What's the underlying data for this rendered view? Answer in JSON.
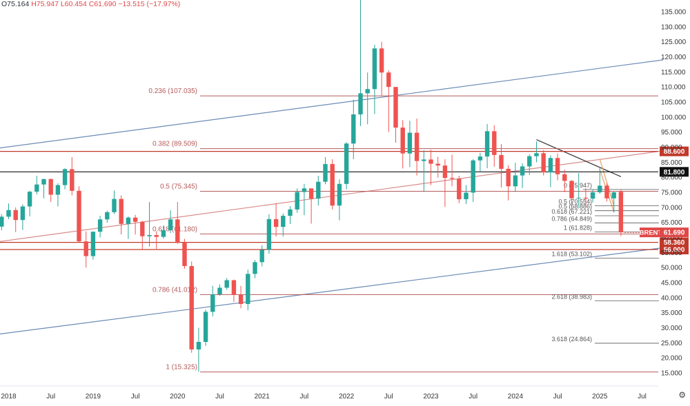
{
  "ohlc": {
    "open": "O75.164",
    "high": "H75.947",
    "low": "L60.454",
    "close": "C61.690",
    "change": "−13.515 (−17.97%)"
  },
  "settings_icon": "gear-icon",
  "chart_data": {
    "type": "candlestick",
    "symbol": "BRENT",
    "interval": "monthly",
    "ylim": [
      14,
      136
    ],
    "y_ticks": [
      15,
      20,
      25,
      30,
      35,
      40,
      45,
      50,
      55,
      60,
      65,
      70,
      75,
      80,
      85,
      90,
      95,
      100,
      105,
      110,
      115,
      120,
      125,
      130,
      135
    ],
    "y_tick_labels": [
      "15.000",
      "20.000",
      "25.000",
      "30.000",
      "35.000",
      "40.000",
      "45.000",
      "50.000",
      "55.000",
      "60.000",
      "65.000",
      "70.000",
      "75.000",
      "80.000",
      "85.000",
      "90.000",
      "95.000",
      "100.000",
      "105.000",
      "110.000",
      "115.000",
      "120.000",
      "125.000",
      "130.000",
      "135.000"
    ],
    "x_ticks": [
      {
        "date": "2018-01",
        "label": "2018"
      },
      {
        "date": "2018-07",
        "label": "Jul"
      },
      {
        "date": "2019-01",
        "label": "2019"
      },
      {
        "date": "2019-07",
        "label": "Jul"
      },
      {
        "date": "2020-01",
        "label": "2020"
      },
      {
        "date": "2020-07",
        "label": "Jul"
      },
      {
        "date": "2021-01",
        "label": "2021"
      },
      {
        "date": "2021-07",
        "label": "Jul"
      },
      {
        "date": "2022-01",
        "label": "2022"
      },
      {
        "date": "2022-07",
        "label": "Jul"
      },
      {
        "date": "2023-01",
        "label": "2023"
      },
      {
        "date": "2023-07",
        "label": "Jul"
      },
      {
        "date": "2024-01",
        "label": "2024"
      },
      {
        "date": "2024-07",
        "label": "Jul"
      },
      {
        "date": "2025-01",
        "label": "2025"
      },
      {
        "date": "2025-07",
        "label": "Jul"
      }
    ],
    "candles": [
      {
        "t": "2017-11",
        "o": 60.9,
        "h": 64.7,
        "l": 59.7,
        "c": 63.6
      },
      {
        "t": "2017-12",
        "o": 63.6,
        "h": 67.7,
        "l": 62.4,
        "c": 66.9
      },
      {
        "t": "2018-01",
        "o": 66.9,
        "h": 71.3,
        "l": 66.1,
        "c": 69.1
      },
      {
        "t": "2018-02",
        "o": 69.1,
        "h": 70.0,
        "l": 61.8,
        "c": 65.8
      },
      {
        "t": "2018-03",
        "o": 65.8,
        "h": 71.0,
        "l": 62.5,
        "c": 70.3
      },
      {
        "t": "2018-04",
        "o": 70.3,
        "h": 75.5,
        "l": 67.0,
        "c": 75.2
      },
      {
        "t": "2018-05",
        "o": 75.2,
        "h": 80.5,
        "l": 74.3,
        "c": 77.6
      },
      {
        "t": "2018-06",
        "o": 77.6,
        "h": 79.5,
        "l": 73.0,
        "c": 79.4
      },
      {
        "t": "2018-07",
        "o": 79.4,
        "h": 79.6,
        "l": 71.8,
        "c": 74.2
      },
      {
        "t": "2018-08",
        "o": 74.2,
        "h": 78.0,
        "l": 70.3,
        "c": 77.4
      },
      {
        "t": "2018-09",
        "o": 77.4,
        "h": 83.0,
        "l": 76.0,
        "c": 82.7
      },
      {
        "t": "2018-10",
        "o": 82.7,
        "h": 86.7,
        "l": 74.0,
        "c": 75.5
      },
      {
        "t": "2018-11",
        "o": 75.5,
        "h": 77.0,
        "l": 58.3,
        "c": 58.7
      },
      {
        "t": "2018-12",
        "o": 58.7,
        "h": 62.0,
        "l": 50.0,
        "c": 53.8
      },
      {
        "t": "2019-01",
        "o": 53.8,
        "h": 62.0,
        "l": 52.6,
        "c": 61.9
      },
      {
        "t": "2019-02",
        "o": 61.9,
        "h": 67.2,
        "l": 60.0,
        "c": 66.0
      },
      {
        "t": "2019-03",
        "o": 66.0,
        "h": 68.9,
        "l": 64.9,
        "c": 68.4
      },
      {
        "t": "2019-04",
        "o": 68.4,
        "h": 75.6,
        "l": 67.8,
        "c": 72.8
      },
      {
        "t": "2019-05",
        "o": 72.8,
        "h": 74.0,
        "l": 61.0,
        "c": 64.5
      },
      {
        "t": "2019-06",
        "o": 64.5,
        "h": 67.0,
        "l": 59.5,
        "c": 66.6
      },
      {
        "t": "2019-07",
        "o": 66.6,
        "h": 67.5,
        "l": 61.0,
        "c": 65.2
      },
      {
        "t": "2019-08",
        "o": 65.2,
        "h": 65.5,
        "l": 55.8,
        "c": 60.4
      },
      {
        "t": "2019-09",
        "o": 60.4,
        "h": 71.8,
        "l": 57.0,
        "c": 60.8
      },
      {
        "t": "2019-10",
        "o": 60.8,
        "h": 62.0,
        "l": 56.2,
        "c": 60.2
      },
      {
        "t": "2019-11",
        "o": 60.2,
        "h": 64.0,
        "l": 59.6,
        "c": 62.4
      },
      {
        "t": "2019-12",
        "o": 62.4,
        "h": 69.0,
        "l": 61.5,
        "c": 66.0
      },
      {
        "t": "2020-01",
        "o": 66.0,
        "h": 71.8,
        "l": 57.9,
        "c": 58.2
      },
      {
        "t": "2020-02",
        "o": 58.2,
        "h": 59.5,
        "l": 49.6,
        "c": 50.5
      },
      {
        "t": "2020-03",
        "o": 50.5,
        "h": 52.0,
        "l": 21.7,
        "c": 22.8
      },
      {
        "t": "2020-04",
        "o": 22.8,
        "h": 30.0,
        "l": 15.4,
        "c": 25.3
      },
      {
        "t": "2020-05",
        "o": 25.3,
        "h": 36.0,
        "l": 24.0,
        "c": 35.3
      },
      {
        "t": "2020-06",
        "o": 35.3,
        "h": 43.9,
        "l": 33.8,
        "c": 41.1
      },
      {
        "t": "2020-07",
        "o": 41.1,
        "h": 44.4,
        "l": 40.6,
        "c": 43.3
      },
      {
        "t": "2020-08",
        "o": 43.3,
        "h": 46.5,
        "l": 42.6,
        "c": 45.8
      },
      {
        "t": "2020-09",
        "o": 45.8,
        "h": 46.0,
        "l": 38.6,
        "c": 40.9
      },
      {
        "t": "2020-10",
        "o": 40.9,
        "h": 43.9,
        "l": 36.5,
        "c": 37.9
      },
      {
        "t": "2020-11",
        "o": 37.9,
        "h": 49.3,
        "l": 35.8,
        "c": 47.9
      },
      {
        "t": "2020-12",
        "o": 47.9,
        "h": 52.5,
        "l": 46.5,
        "c": 51.8
      },
      {
        "t": "2021-01",
        "o": 51.8,
        "h": 57.4,
        "l": 50.4,
        "c": 55.9
      },
      {
        "t": "2021-02",
        "o": 55.9,
        "h": 67.7,
        "l": 54.6,
        "c": 66.1
      },
      {
        "t": "2021-03",
        "o": 66.1,
        "h": 71.4,
        "l": 60.3,
        "c": 63.5
      },
      {
        "t": "2021-04",
        "o": 63.5,
        "h": 68.0,
        "l": 60.3,
        "c": 67.2
      },
      {
        "t": "2021-05",
        "o": 67.2,
        "h": 70.4,
        "l": 64.5,
        "c": 69.3
      },
      {
        "t": "2021-06",
        "o": 69.3,
        "h": 76.3,
        "l": 68.2,
        "c": 75.1
      },
      {
        "t": "2021-07",
        "o": 75.1,
        "h": 77.8,
        "l": 67.4,
        "c": 76.3
      },
      {
        "t": "2021-08",
        "o": 76.3,
        "h": 76.3,
        "l": 64.6,
        "c": 72.9
      },
      {
        "t": "2021-09",
        "o": 72.9,
        "h": 80.5,
        "l": 70.6,
        "c": 78.5
      },
      {
        "t": "2021-10",
        "o": 78.5,
        "h": 86.7,
        "l": 77.7,
        "c": 84.4
      },
      {
        "t": "2021-11",
        "o": 84.4,
        "h": 86.0,
        "l": 69.3,
        "c": 70.6
      },
      {
        "t": "2021-12",
        "o": 70.6,
        "h": 79.3,
        "l": 65.7,
        "c": 77.8
      },
      {
        "t": "2022-01",
        "o": 77.8,
        "h": 91.7,
        "l": 76.0,
        "c": 91.2
      },
      {
        "t": "2022-02",
        "o": 91.2,
        "h": 105.8,
        "l": 86.0,
        "c": 100.9
      },
      {
        "t": "2022-03",
        "o": 100.9,
        "h": 139.1,
        "l": 97.0,
        "c": 107.9
      },
      {
        "t": "2022-04",
        "o": 107.9,
        "h": 114.8,
        "l": 97.6,
        "c": 109.3
      },
      {
        "t": "2022-05",
        "o": 109.3,
        "h": 124.0,
        "l": 101.0,
        "c": 122.8
      },
      {
        "t": "2022-06",
        "o": 122.8,
        "h": 125.0,
        "l": 107.0,
        "c": 114.8
      },
      {
        "t": "2022-07",
        "o": 114.8,
        "h": 115.5,
        "l": 95.0,
        "c": 110.0
      },
      {
        "t": "2022-08",
        "o": 110.0,
        "h": 110.0,
        "l": 91.5,
        "c": 96.5
      },
      {
        "t": "2022-09",
        "o": 96.5,
        "h": 99.0,
        "l": 82.9,
        "c": 87.9
      },
      {
        "t": "2022-10",
        "o": 87.9,
        "h": 98.8,
        "l": 83.4,
        "c": 94.8
      },
      {
        "t": "2022-11",
        "o": 94.8,
        "h": 99.5,
        "l": 80.6,
        "c": 85.4
      },
      {
        "t": "2022-12",
        "o": 85.4,
        "h": 89.0,
        "l": 75.1,
        "c": 85.9
      },
      {
        "t": "2023-01",
        "o": 85.9,
        "h": 89.1,
        "l": 77.4,
        "c": 84.5
      },
      {
        "t": "2023-02",
        "o": 84.5,
        "h": 86.8,
        "l": 79.9,
        "c": 83.9
      },
      {
        "t": "2023-03",
        "o": 83.9,
        "h": 86.0,
        "l": 70.1,
        "c": 79.8
      },
      {
        "t": "2023-04",
        "o": 79.8,
        "h": 87.5,
        "l": 77.0,
        "c": 79.5
      },
      {
        "t": "2023-05",
        "o": 79.5,
        "h": 80.5,
        "l": 71.4,
        "c": 72.7
      },
      {
        "t": "2023-06",
        "o": 72.7,
        "h": 77.4,
        "l": 71.1,
        "c": 74.9
      },
      {
        "t": "2023-07",
        "o": 74.9,
        "h": 86.0,
        "l": 71.8,
        "c": 85.6
      },
      {
        "t": "2023-08",
        "o": 85.6,
        "h": 88.1,
        "l": 82.0,
        "c": 86.9
      },
      {
        "t": "2023-09",
        "o": 86.9,
        "h": 97.7,
        "l": 83.0,
        "c": 95.3
      },
      {
        "t": "2023-10",
        "o": 95.3,
        "h": 97.3,
        "l": 83.5,
        "c": 87.4
      },
      {
        "t": "2023-11",
        "o": 87.4,
        "h": 91.0,
        "l": 76.6,
        "c": 82.8
      },
      {
        "t": "2023-12",
        "o": 82.8,
        "h": 84.0,
        "l": 72.3,
        "c": 77.0
      },
      {
        "t": "2024-01",
        "o": 77.0,
        "h": 84.8,
        "l": 75.1,
        "c": 80.6
      },
      {
        "t": "2024-02",
        "o": 80.6,
        "h": 84.6,
        "l": 76.4,
        "c": 83.6
      },
      {
        "t": "2024-03",
        "o": 83.6,
        "h": 87.6,
        "l": 80.7,
        "c": 87.0
      },
      {
        "t": "2024-04",
        "o": 87.0,
        "h": 91.9,
        "l": 85.0,
        "c": 88.0
      },
      {
        "t": "2024-05",
        "o": 88.0,
        "h": 89.0,
        "l": 80.6,
        "c": 81.6
      },
      {
        "t": "2024-06",
        "o": 81.6,
        "h": 87.3,
        "l": 76.7,
        "c": 86.4
      },
      {
        "t": "2024-07",
        "o": 86.4,
        "h": 87.9,
        "l": 79.0,
        "c": 81.0
      },
      {
        "t": "2024-08",
        "o": 81.0,
        "h": 82.5,
        "l": 75.0,
        "c": 78.8
      },
      {
        "t": "2024-09",
        "o": 78.8,
        "h": 79.0,
        "l": 68.7,
        "c": 73.0
      },
      {
        "t": "2024-10",
        "o": 73.0,
        "h": 81.4,
        "l": 70.0,
        "c": 73.2
      },
      {
        "t": "2024-11",
        "o": 73.2,
        "h": 76.3,
        "l": 70.5,
        "c": 72.9
      },
      {
        "t": "2024-12",
        "o": 72.9,
        "h": 76.0,
        "l": 71.6,
        "c": 75.0
      },
      {
        "t": "2025-01",
        "o": 75.0,
        "h": 83.0,
        "l": 74.5,
        "c": 77.2
      },
      {
        "t": "2025-02",
        "o": 77.2,
        "h": 78.0,
        "l": 72.0,
        "c": 73.0
      },
      {
        "t": "2025-03",
        "o": 73.0,
        "h": 75.2,
        "l": 68.3,
        "c": 75.0
      },
      {
        "t": "2025-04",
        "o": 75.164,
        "h": 75.947,
        "l": 60.454,
        "c": 61.69
      }
    ],
    "fib_major": [
      {
        "ratio": "0.236",
        "value": 107.035,
        "label": "0.236 (107.035)"
      },
      {
        "ratio": "0.382",
        "value": 89.509,
        "label": "0.382 (89.509)"
      },
      {
        "ratio": "0.5",
        "value": 75.345,
        "label": "0.5 (75.345)"
      },
      {
        "ratio": "0.618",
        "value": 61.18,
        "label": "0.618 (61.180)"
      },
      {
        "ratio": "0.786",
        "value": 41.012,
        "label": "0.786 (41.012)"
      },
      {
        "ratio": "1",
        "value": 15.325,
        "label": "1 (15.325)"
      }
    ],
    "fib_minor": [
      {
        "ratio": "0",
        "value": 75.947,
        "label": "0 (75.947)"
      },
      {
        "ratio": "0.5",
        "value": 70.554,
        "label": "0.5 (70.554)"
      },
      {
        "ratio": "0.5",
        "value": 68.886,
        "label": "0.5 (68.886)"
      },
      {
        "ratio": "0.618",
        "value": 67.221,
        "label": "0.618 (67.221)"
      },
      {
        "ratio": "0.786",
        "value": 64.849,
        "label": "0.786 (64.849)"
      },
      {
        "ratio": "1",
        "value": 61.828,
        "label": "1 (61.828)"
      },
      {
        "ratio": "1.618",
        "value": 53.102,
        "label": "1.618 (53.102)"
      },
      {
        "ratio": "2.618",
        "value": 38.983,
        "label": "2.618 (38.983)"
      },
      {
        "ratio": "3.618",
        "value": 24.864,
        "label": "3.618 (24.864)"
      }
    ],
    "hlines": [
      {
        "value": 88.6,
        "label": "88.600",
        "color": "#c0392b"
      },
      {
        "value": 81.8,
        "label": "81.800",
        "color": "#111111"
      },
      {
        "value": 58.36,
        "label": "58.360",
        "color": "#c0392b"
      },
      {
        "value": 56.0,
        "label": "56.000",
        "color": "#c0392b"
      }
    ],
    "price_tag": {
      "label": "BRENT",
      "value": 61.69,
      "value_label": "61.690",
      "color": "#e04848"
    },
    "trendlines": [
      {
        "name": "channel-upper",
        "from": {
          "t": "2017-11",
          "v": 89.5
        },
        "to": {
          "t": "2025-10",
          "v": 119.0
        },
        "color": "#6a8ab5"
      },
      {
        "name": "channel-lower",
        "from": {
          "t": "2017-11",
          "v": 27.7
        },
        "to": {
          "t": "2025-10",
          "v": 56.6
        },
        "color": "#6a8ab5"
      },
      {
        "name": "mid-trend",
        "from": {
          "t": "2017-11",
          "v": 58.4
        },
        "to": {
          "t": "2025-10",
          "v": 88.8
        },
        "color": "#d98b8b"
      },
      {
        "name": "short-downtrend",
        "from": {
          "t": "2024-04",
          "v": 92.5
        },
        "to": {
          "t": "2025-04",
          "v": 80.2
        },
        "color": "#333333"
      },
      {
        "name": "fib-leg-a",
        "from": {
          "t": "2025-01",
          "v": 86.0
        },
        "to": {
          "t": "2025-03",
          "v": 70.5
        },
        "color": "#e6a060"
      },
      {
        "name": "fib-leg-b",
        "from": {
          "t": "2025-01",
          "v": 82.5
        },
        "to": {
          "t": "2025-03",
          "v": 68.5
        },
        "color": "#e6a060"
      }
    ],
    "colors": {
      "up": "#26a69a",
      "down": "#ef5350",
      "fib": "#b45a5a",
      "fib_minor": "#555555",
      "axis_text": "#333333"
    }
  }
}
